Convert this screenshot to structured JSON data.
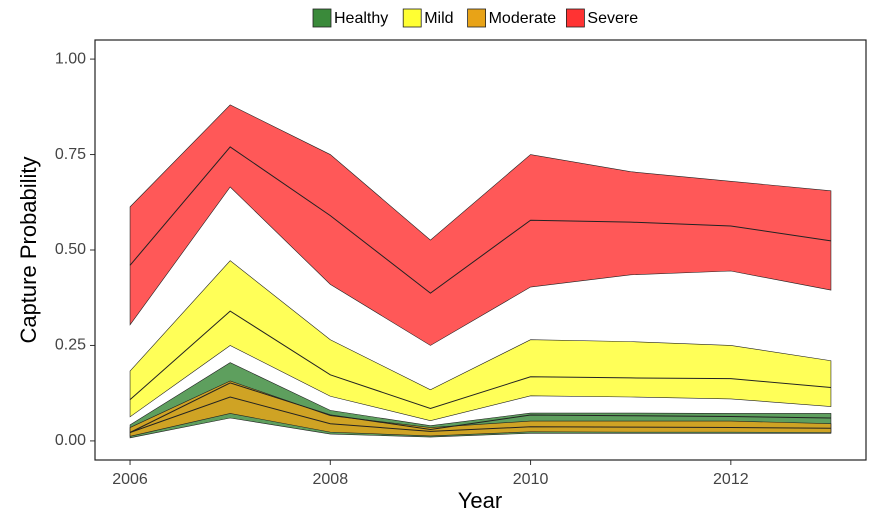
{
  "chart_data": {
    "type": "ribbon",
    "x_label": "Year",
    "y_label": "Capture Probability",
    "x": [
      2006,
      2007,
      2008,
      2009,
      2010,
      2011,
      2012,
      2013
    ],
    "xlim": [
      2005.65,
      2013.35
    ],
    "xticks": [
      2006,
      2008,
      2010,
      2012
    ],
    "ylim": [
      -0.05,
      1.05
    ],
    "yticks": [
      {
        "value": 0,
        "label": "0.00"
      },
      {
        "value": 0.25,
        "label": "0.25"
      },
      {
        "value": 0.5,
        "label": "0.50"
      },
      {
        "value": 0.75,
        "label": "0.75"
      },
      {
        "value": 1,
        "label": "1.00"
      }
    ],
    "legend": "top",
    "series": [
      {
        "name": "Healthy",
        "color": "#3a8a3a",
        "lower": [
          0.008,
          0.06,
          0.018,
          0.01,
          0.02,
          0.02,
          0.02,
          0.02
        ],
        "values": [
          0.022,
          0.152,
          0.068,
          0.03,
          0.068,
          0.066,
          0.064,
          0.06
        ],
        "upper": [
          0.042,
          0.205,
          0.08,
          0.04,
          0.073,
          0.073,
          0.072,
          0.072
        ]
      },
      {
        "name": "Mild",
        "color": "#ffff33",
        "lower": [
          0.063,
          0.25,
          0.117,
          0.053,
          0.118,
          0.115,
          0.11,
          0.09
        ],
        "values": [
          0.108,
          0.34,
          0.173,
          0.085,
          0.168,
          0.165,
          0.163,
          0.14
        ],
        "upper": [
          0.183,
          0.472,
          0.265,
          0.134,
          0.265,
          0.26,
          0.25,
          0.21
        ]
      },
      {
        "name": "Moderate",
        "color": "#e8a317",
        "lower": [
          0.012,
          0.072,
          0.023,
          0.013,
          0.024,
          0.023,
          0.023,
          0.022
        ],
        "values": [
          0.022,
          0.115,
          0.045,
          0.025,
          0.037,
          0.036,
          0.035,
          0.033
        ],
        "upper": [
          0.035,
          0.157,
          0.066,
          0.035,
          0.052,
          0.052,
          0.052,
          0.045
        ]
      },
      {
        "name": "Severe",
        "color": "#ff3333",
        "lower": [
          0.304,
          0.665,
          0.41,
          0.25,
          0.403,
          0.435,
          0.445,
          0.395
        ],
        "values": [
          0.46,
          0.77,
          0.59,
          0.387,
          0.578,
          0.573,
          0.563,
          0.524
        ],
        "upper": [
          0.613,
          0.88,
          0.75,
          0.526,
          0.75,
          0.705,
          0.68,
          0.655
        ]
      }
    ]
  }
}
